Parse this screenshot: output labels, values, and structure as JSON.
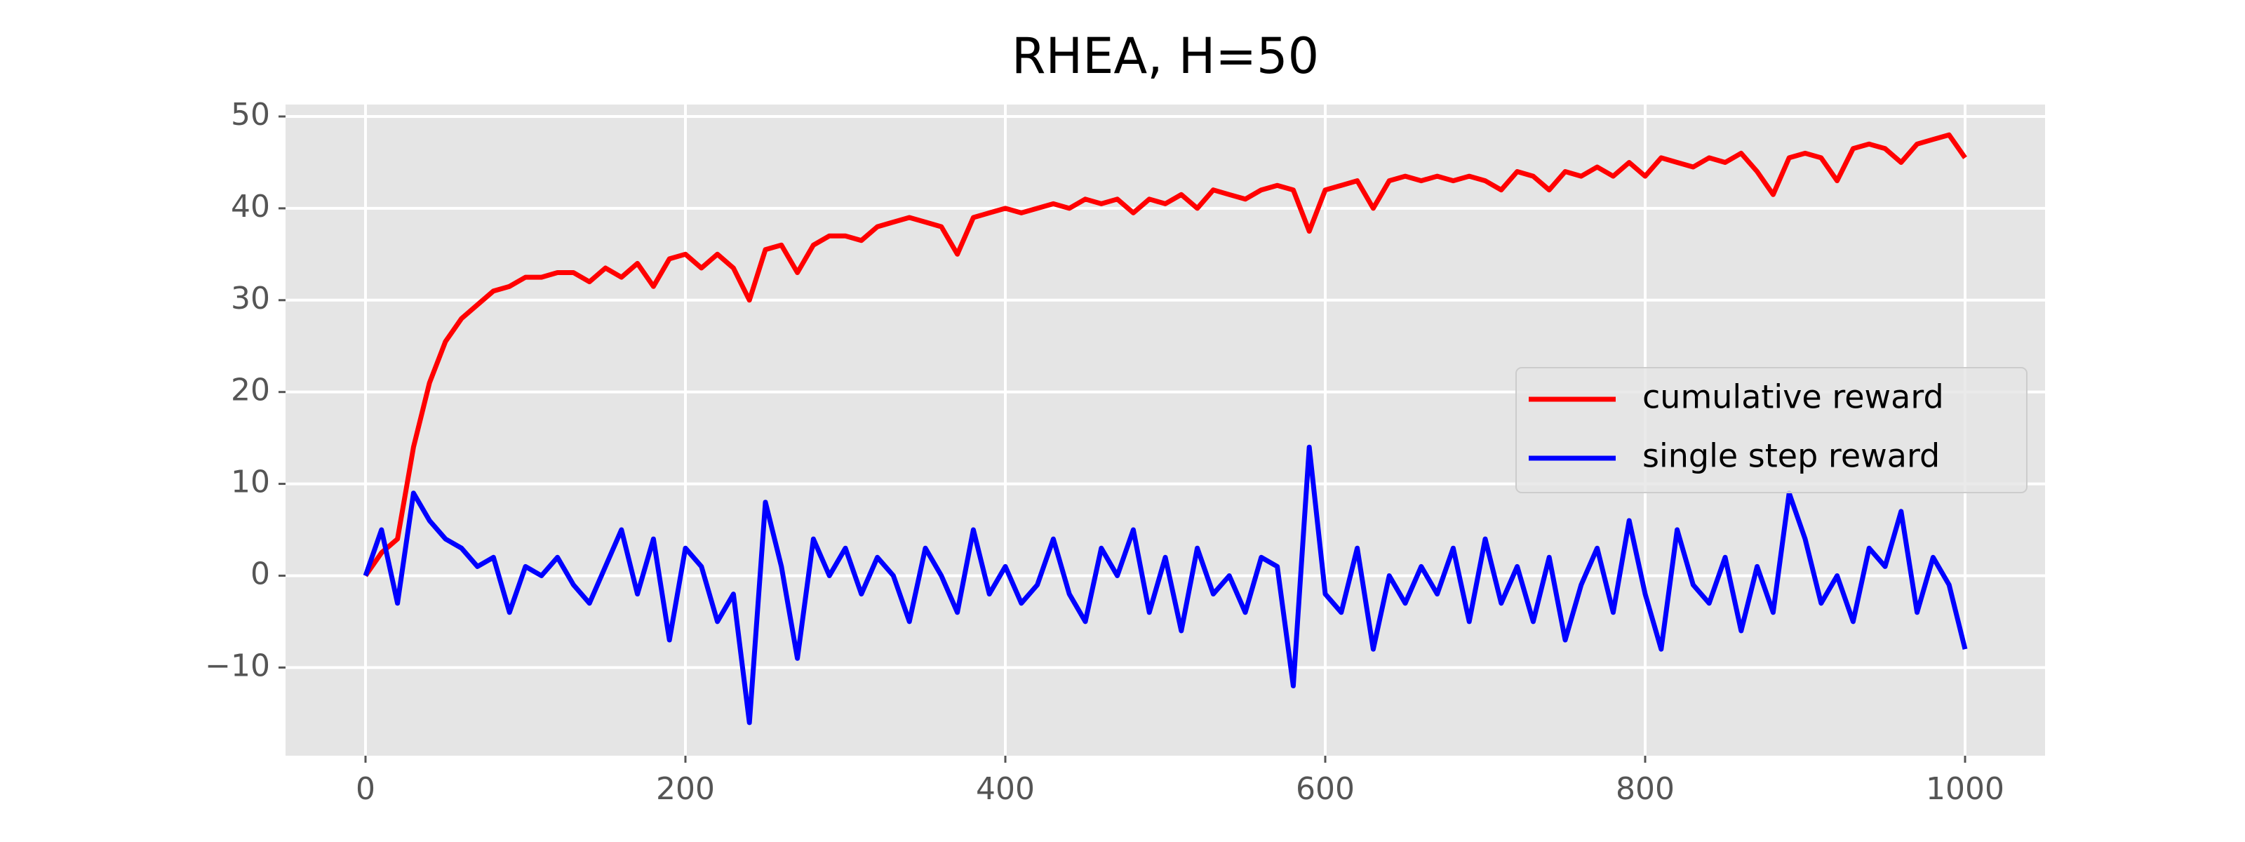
{
  "chart_data": {
    "type": "line",
    "title": "RHEA, H=50",
    "x": [
      0,
      10,
      20,
      30,
      40,
      50,
      60,
      70,
      80,
      90,
      100,
      110,
      120,
      130,
      140,
      150,
      160,
      170,
      180,
      190,
      200,
      210,
      220,
      230,
      240,
      250,
      260,
      270,
      280,
      290,
      300,
      310,
      320,
      330,
      340,
      350,
      360,
      370,
      380,
      390,
      400,
      410,
      420,
      430,
      440,
      450,
      460,
      470,
      480,
      490,
      500,
      510,
      520,
      530,
      540,
      550,
      560,
      570,
      580,
      590,
      600,
      610,
      620,
      630,
      640,
      650,
      660,
      670,
      680,
      690,
      700,
      710,
      720,
      730,
      740,
      750,
      760,
      770,
      780,
      790,
      800,
      810,
      820,
      830,
      840,
      850,
      860,
      870,
      880,
      890,
      900,
      910,
      920,
      930,
      940,
      950,
      960,
      970,
      980,
      990,
      1000
    ],
    "series": [
      {
        "name": "cumulative reward",
        "color": "#ff0000",
        "values": [
          0,
          2.5,
          4,
          14,
          21,
          25.5,
          28,
          29.5,
          31,
          31.5,
          32.5,
          32.5,
          33,
          33,
          32,
          33.5,
          32.5,
          34,
          31.5,
          34.5,
          35,
          33.5,
          35,
          33.5,
          30,
          35.5,
          36,
          33,
          36,
          37,
          37,
          36.5,
          38,
          38.5,
          39,
          38.5,
          38,
          35,
          39,
          39.5,
          40,
          39.5,
          40,
          40.5,
          40,
          41,
          40.5,
          41,
          39.5,
          41,
          40.5,
          41.5,
          40,
          42,
          41.5,
          41,
          42,
          42.5,
          42,
          37.5,
          42,
          42.5,
          43,
          40,
          43,
          43.5,
          43,
          43.5,
          43,
          43.5,
          43,
          42,
          44,
          43.5,
          42,
          44,
          43.5,
          44.5,
          43.5,
          45,
          43.5,
          45.5,
          45,
          44.5,
          45.5,
          45,
          46,
          44,
          41.5,
          45.5,
          46,
          45.5,
          43,
          46.5,
          47,
          46.5,
          45,
          47,
          47.5,
          48,
          45.5
        ]
      },
      {
        "name": "single step reward",
        "color": "#0000ff",
        "values": [
          0,
          5,
          -3,
          9,
          6,
          4,
          3,
          1,
          2,
          -4,
          1,
          0,
          2,
          -1,
          -3,
          1,
          5,
          -2,
          4,
          -7,
          3,
          1,
          -5,
          -2,
          -16,
          8,
          1,
          -9,
          4,
          0,
          3,
          -2,
          2,
          0,
          -5,
          3,
          0,
          -4,
          5,
          -2,
          1,
          -3,
          -1,
          4,
          -2,
          -5,
          3,
          0,
          5,
          -4,
          2,
          -6,
          3,
          -2,
          0,
          -4,
          2,
          1,
          -12,
          14,
          -2,
          -4,
          3,
          -8,
          0,
          -3,
          1,
          -2,
          3,
          -5,
          4,
          -3,
          1,
          -5,
          2,
          -7,
          -1,
          3,
          -4,
          6,
          -2,
          -8,
          5,
          -1,
          -3,
          2,
          -6,
          1,
          -4,
          9,
          4,
          -3,
          0,
          -5,
          3,
          1,
          7,
          -4,
          2,
          -1,
          -8
        ]
      }
    ],
    "xlim": [
      -50,
      1050
    ],
    "ylim": [
      -19.6,
      51.3
    ],
    "xticks": [
      0,
      200,
      400,
      600,
      800,
      1000
    ],
    "yticks": [
      {
        "value": -10,
        "label": "−10"
      },
      0,
      10,
      20,
      30,
      40,
      50
    ],
    "grid": true,
    "legend": "center right"
  }
}
